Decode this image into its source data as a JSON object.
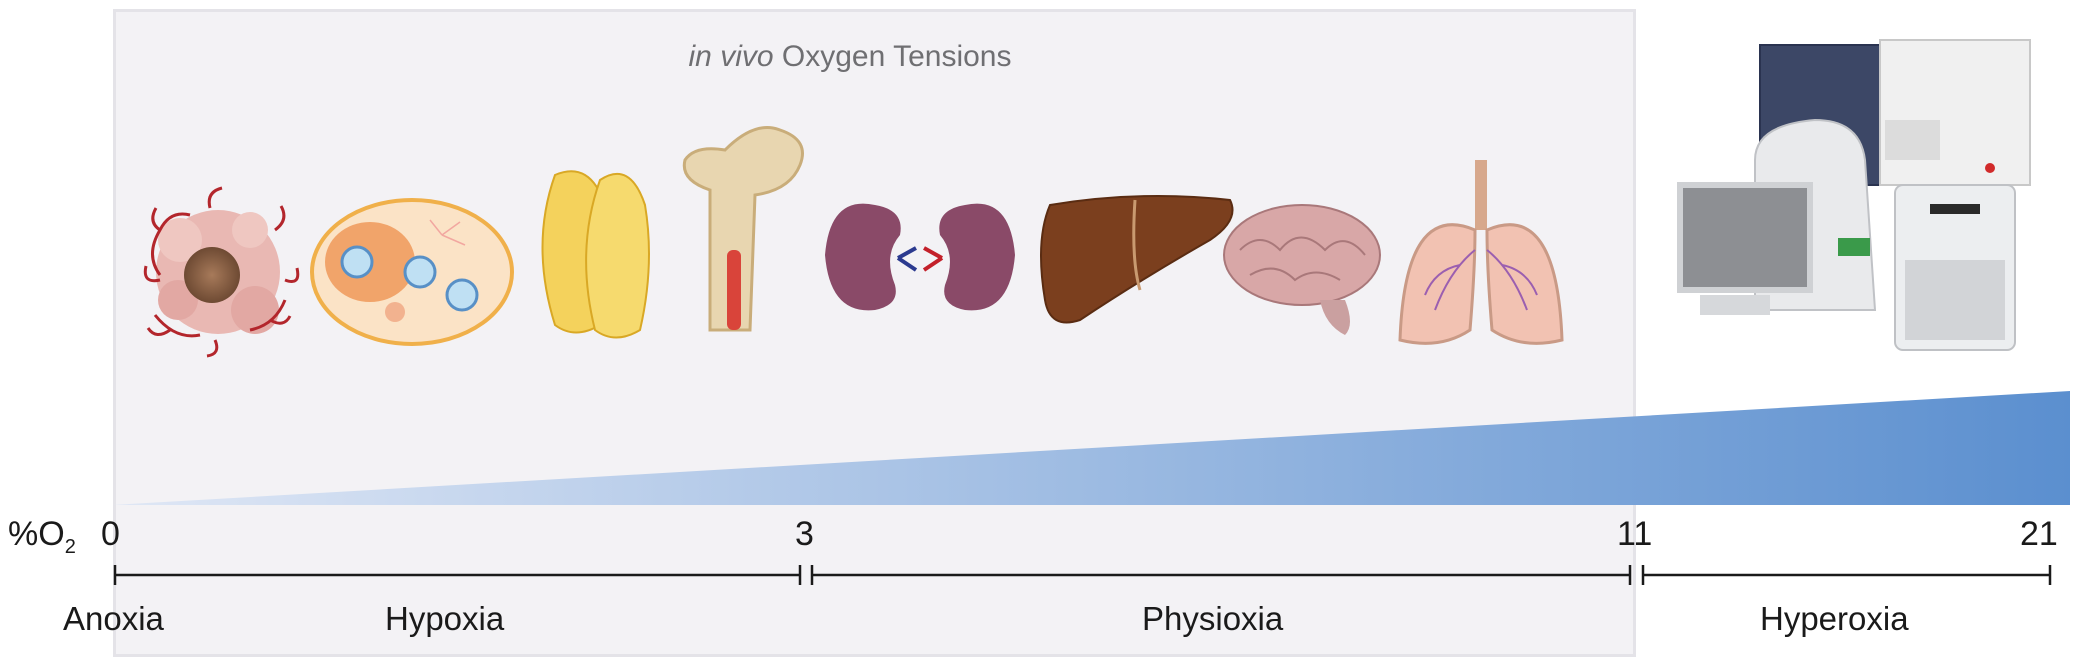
{
  "title": {
    "italic": "in vivo",
    "rest": " Oxygen Tensions"
  },
  "axis": {
    "label_prefix": "%O",
    "label_subscript": "2",
    "ticks": [
      {
        "value": 0,
        "label": "0"
      },
      {
        "value": 3,
        "label": "3"
      },
      {
        "value": 11,
        "label": "11"
      },
      {
        "value": 21,
        "label": "21"
      }
    ]
  },
  "zones": [
    {
      "label": "Anoxia"
    },
    {
      "label": "Hypoxia",
      "from": 0,
      "to": 3
    },
    {
      "label": "Physioxia",
      "from": 3,
      "to": 11
    },
    {
      "label": "Hyperoxia",
      "from": 11,
      "to": 21
    }
  ],
  "colors": {
    "gradient_start": "#cfdbef",
    "gradient_end": "#5b8fcf",
    "box_fill": "#f3f2f5",
    "line": "#1a1a1a"
  },
  "icons": [
    "tumor-icon",
    "bone-marrow-niche-icon",
    "adipose-tissue-icon",
    "femur-icon",
    "kidneys-icon",
    "liver-icon",
    "brain-icon",
    "lungs-icon",
    "lab-equipment-icon"
  ]
}
